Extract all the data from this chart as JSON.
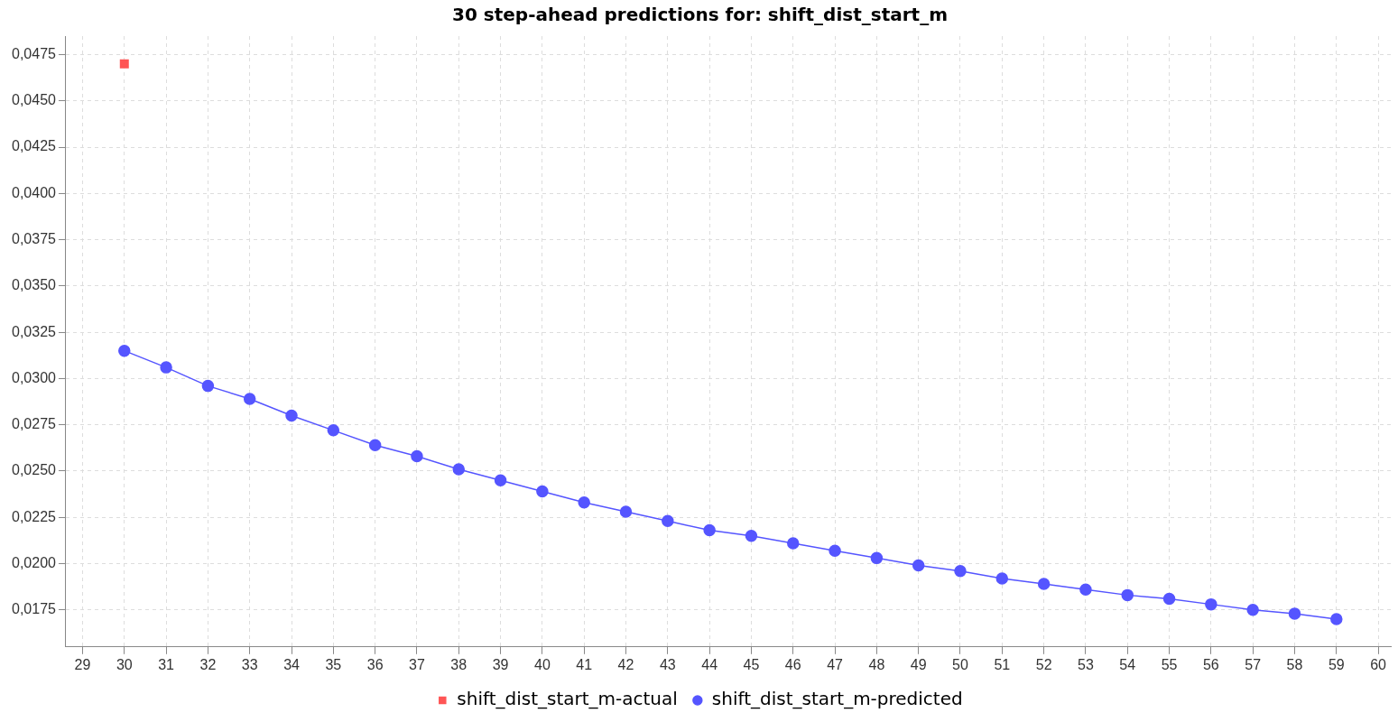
{
  "chart_data": {
    "type": "line",
    "title": "30 step-ahead predictions for: shift_dist_start_m",
    "xlim": [
      28.6,
      60.3
    ],
    "xticks": [
      29,
      30,
      31,
      32,
      33,
      34,
      35,
      36,
      37,
      38,
      39,
      40,
      41,
      42,
      43,
      44,
      45,
      46,
      47,
      48,
      49,
      50,
      51,
      52,
      53,
      54,
      55,
      56,
      57,
      58,
      59,
      60
    ],
    "ylim": [
      0.0155,
      0.0485
    ],
    "yticks": [
      {
        "value": 0.0175,
        "label": "0,0175"
      },
      {
        "value": 0.02,
        "label": "0,0200"
      },
      {
        "value": 0.0225,
        "label": "0,0225"
      },
      {
        "value": 0.025,
        "label": "0,0250"
      },
      {
        "value": 0.0275,
        "label": "0,0275"
      },
      {
        "value": 0.03,
        "label": "0,0300"
      },
      {
        "value": 0.0325,
        "label": "0,0325"
      },
      {
        "value": 0.035,
        "label": "0,0350"
      },
      {
        "value": 0.0375,
        "label": "0,0375"
      },
      {
        "value": 0.04,
        "label": "0,0400"
      },
      {
        "value": 0.0425,
        "label": "0,0425"
      },
      {
        "value": 0.045,
        "label": "0,0450"
      },
      {
        "value": 0.0475,
        "label": "0,0475"
      }
    ],
    "grid": true,
    "legend": "bottom",
    "line_style": "solid",
    "series": [
      {
        "name": "shift_dist_start_m-actual",
        "type": "scatter",
        "marker": "square",
        "color": "#ff5555",
        "x": [
          30
        ],
        "values": [
          0.047
        ]
      },
      {
        "name": "shift_dist_start_m-predicted",
        "type": "line",
        "marker": "circle",
        "color": "#5555ff",
        "x": [
          30,
          31,
          32,
          33,
          34,
          35,
          36,
          37,
          38,
          39,
          40,
          41,
          42,
          43,
          44,
          45,
          46,
          47,
          48,
          49,
          50,
          51,
          52,
          53,
          54,
          55,
          56,
          57,
          58,
          59
        ],
        "values": [
          0.0315,
          0.0306,
          0.0296,
          0.0289,
          0.028,
          0.0272,
          0.0264,
          0.0258,
          0.0251,
          0.0245,
          0.0239,
          0.0233,
          0.0228,
          0.0223,
          0.0218,
          0.0215,
          0.0211,
          0.0207,
          0.0203,
          0.0199,
          0.0196,
          0.0192,
          0.0189,
          0.0186,
          0.0183,
          0.0181,
          0.0178,
          0.0175,
          0.0173,
          0.017
        ]
      }
    ]
  }
}
